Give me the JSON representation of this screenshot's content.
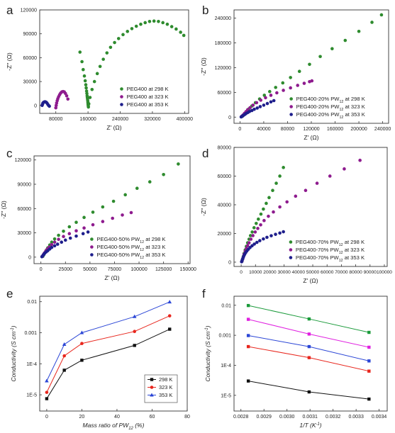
{
  "chart_data": [
    {
      "panel": "a",
      "type": "scatter",
      "xlabel": "Z' (Ω)",
      "ylabel": "-Z'' (Ω)",
      "xlim": [
        40000,
        410000
      ],
      "ylim": [
        -10000,
        120000
      ],
      "xticks": [
        80000,
        160000,
        240000,
        320000,
        400000
      ],
      "xtick_labels": [
        "80000",
        "160000",
        "240000",
        "320000",
        "400000"
      ],
      "yticks": [
        0,
        30000,
        60000,
        90000,
        120000
      ],
      "ytick_labels": [
        "0",
        "30000",
        "60000",
        "90000",
        "120000"
      ],
      "legend_position": "bottom-right",
      "series": [
        {
          "name": "PEG400 at 298 K",
          "color": "#2e8b2e",
          "x": [
            140000,
            145000,
            148000,
            151000,
            153000,
            154500,
            155500,
            156500,
            157200,
            157800,
            158300,
            158800,
            159300,
            159700,
            160000,
            160300,
            160600,
            161000,
            162000,
            165000,
            170000,
            176000,
            183000,
            190000,
            198000,
            207000,
            216000,
            226000,
            236000,
            247000,
            258000,
            269000,
            280000,
            291000,
            302000,
            313000,
            324000,
            335000,
            346000,
            357000,
            368000,
            379000,
            390000,
            398000
          ],
          "y": [
            67000,
            55000,
            45000,
            37000,
            31000,
            26000,
            22000,
            18000,
            15000,
            12000,
            10000,
            8000,
            6000,
            4000,
            2500,
            1000,
            -500,
            -2000,
            2000,
            10000,
            20000,
            30000,
            40000,
            49000,
            58000,
            66000,
            73000,
            79000,
            84000,
            89000,
            93000,
            96500,
            99500,
            102000,
            104000,
            105500,
            106000,
            105500,
            104000,
            102000,
            99000,
            96000,
            92000,
            88000
          ]
        },
        {
          "name": "PEG400 at 323 K",
          "color": "#8e1b8e",
          "x": [
            80000,
            81000,
            82000,
            83500,
            85000,
            87000,
            89500,
            92000,
            95000,
            98000,
            101000,
            104000,
            107000,
            110000
          ],
          "y": [
            -3000,
            0,
            3000,
            6000,
            8500,
            11000,
            13500,
            15500,
            17000,
            17500,
            17000,
            15000,
            12000,
            8000
          ]
        },
        {
          "name": "PEG400 at 353 K",
          "color": "#1e1e8c",
          "x": [
            46000,
            47000,
            48000,
            50000,
            52000,
            54000,
            56000,
            58000,
            60000,
            62000,
            64000
          ],
          "y": [
            0,
            1500,
            3000,
            4000,
            4500,
            4500,
            4000,
            3000,
            1500,
            0,
            -1000
          ]
        }
      ]
    },
    {
      "panel": "b",
      "type": "scatter",
      "xlabel": "Z' (Ω)",
      "ylabel": "-Z'' (Ω)",
      "xlim": [
        -10000,
        250000
      ],
      "ylim": [
        -15000,
        260000
      ],
      "xticks": [
        0,
        40000,
        80000,
        120000,
        160000,
        200000,
        240000
      ],
      "xtick_labels": [
        "0",
        "40000",
        "80000",
        "120000",
        "160000",
        "200000",
        "240000"
      ],
      "yticks": [
        0,
        60000,
        120000,
        180000,
        240000
      ],
      "ytick_labels": [
        "0",
        "60000",
        "120000",
        "180000",
        "240000"
      ],
      "legend_position": "bottom-right",
      "series": [
        {
          "name": "PEG400-20% PW12 at 298 K",
          "color": "#2e8b2e",
          "x": [
            4000,
            6000,
            8000,
            11000,
            15000,
            20000,
            26000,
            33000,
            41000,
            50000,
            60000,
            72000,
            85000,
            100000,
            117000,
            135000,
            155000,
            177000,
            200000,
            222000,
            238000
          ],
          "y": [
            2000,
            5000,
            9000,
            14000,
            20000,
            27000,
            35000,
            44000,
            53000,
            62000,
            72000,
            83000,
            96000,
            111000,
            128000,
            147000,
            166000,
            186000,
            208000,
            230000,
            248000
          ]
        },
        {
          "name": "PEG400-20% PW12 at 323 K",
          "color": "#8e1b8e",
          "x": [
            3000,
            5000,
            7500,
            10000,
            13000,
            17000,
            22000,
            28000,
            35000,
            43000,
            52000,
            62000,
            73000,
            85000,
            97000,
            108000,
            117000,
            121000
          ],
          "y": [
            2000,
            5000,
            9000,
            13000,
            18000,
            23000,
            29000,
            35000,
            41000,
            47000,
            53000,
            59000,
            65000,
            71000,
            77000,
            82000,
            86000,
            88000
          ]
        },
        {
          "name": "PEG400-20% PW12 at 353 K",
          "color": "#1e1e8c",
          "x": [
            2000,
            3000,
            4500,
            6000,
            8000,
            10000,
            13000,
            16000,
            20000,
            24000,
            29000,
            34000,
            40000,
            46000,
            52000,
            57000
          ],
          "y": [
            500,
            1500,
            3000,
            4500,
            6500,
            8500,
            11000,
            13500,
            16000,
            19000,
            22000,
            25500,
            29000,
            33000,
            37000,
            40000
          ]
        }
      ]
    },
    {
      "panel": "c",
      "type": "scatter",
      "xlabel": "Z' (Ω)",
      "ylabel": "-Z'' (Ω)",
      "xlim": [
        -7000,
        152000
      ],
      "ylim": [
        -8000,
        125000
      ],
      "xticks": [
        0,
        25000,
        50000,
        75000,
        100000,
        125000,
        150000
      ],
      "xtick_labels": [
        "0",
        "25000",
        "50000",
        "75000",
        "100000",
        "125000",
        "150000"
      ],
      "yticks": [
        0,
        30000,
        60000,
        90000,
        120000
      ],
      "ytick_labels": [
        "0",
        "30000",
        "60000",
        "90000",
        "120000"
      ],
      "legend_position": "bottom-right",
      "series": [
        {
          "name": "PEG400-50% PW12 at 298 K",
          "color": "#2e8b2e",
          "x": [
            2000,
            3000,
            4000,
            5500,
            7000,
            9000,
            11000,
            14000,
            18000,
            23000,
            29000,
            36000,
            44000,
            53000,
            63000,
            74000,
            86000,
            98000,
            111000,
            125000,
            140000
          ],
          "y": [
            1000,
            3000,
            5500,
            8500,
            11500,
            15000,
            18500,
            22500,
            27000,
            32000,
            37500,
            43000,
            49000,
            55500,
            62000,
            69000,
            77000,
            85000,
            93000,
            102000,
            115000
          ]
        },
        {
          "name": "PEG400-50% PW12 at 323 K",
          "color": "#8e1b8e",
          "x": [
            1500,
            2500,
            3500,
            5000,
            6500,
            8500,
            11000,
            14000,
            18000,
            23000,
            29000,
            36000,
            44000,
            53000,
            63000,
            73000,
            83000,
            92000
          ],
          "y": [
            1000,
            3000,
            5000,
            7500,
            10000,
            12500,
            15500,
            18500,
            22000,
            25500,
            29000,
            32500,
            36000,
            40000,
            44000,
            48000,
            52000,
            55000
          ]
        },
        {
          "name": "PEG400-50% PW12 at 353 K",
          "color": "#1e1e8c",
          "x": [
            1000,
            2000,
            3000,
            4000,
            5500,
            7000,
            9000,
            11000,
            14000,
            17000,
            21000,
            25000,
            30000,
            36000,
            43000,
            48000
          ],
          "y": [
            500,
            2000,
            3500,
            5000,
            6500,
            8000,
            10000,
            12000,
            14000,
            16000,
            18500,
            21000,
            23500,
            26000,
            29000,
            31000
          ]
        }
      ]
    },
    {
      "panel": "d",
      "type": "scatter",
      "xlabel": "Z' (Ω)",
      "ylabel": "-Z'' (Ω)",
      "xlim": [
        -5000,
        102000
      ],
      "ylim": [
        -3000,
        80000
      ],
      "xticks": [
        0,
        10000,
        20000,
        30000,
        40000,
        50000,
        60000,
        70000,
        80000,
        90000,
        100000
      ],
      "xtick_labels": [
        "0",
        "10000",
        "20000",
        "30000",
        "40000",
        "50000",
        "60000",
        "70000",
        "80000",
        "90000",
        "100000"
      ],
      "yticks": [
        0,
        20000,
        40000,
        60000,
        80000
      ],
      "ytick_labels": [
        "0",
        "20000",
        "40000",
        "60000",
        "80000"
      ],
      "legend_position": "bottom-right",
      "series": [
        {
          "name": "PEG400-70% PW12 at 298 K",
          "color": "#2e8b2e",
          "x": [
            500,
            1000,
            1500,
            2000,
            2800,
            3600,
            4500,
            5500,
            6500,
            7700,
            9000,
            10500,
            12000,
            13800,
            15500,
            17500,
            19500,
            22000,
            24500,
            27000,
            29500
          ],
          "y": [
            500,
            2000,
            4000,
            6000,
            8500,
            11000,
            13500,
            16000,
            18500,
            21000,
            24000,
            27000,
            30000,
            33500,
            37000,
            41000,
            45000,
            50000,
            55000,
            60000,
            66000
          ]
        },
        {
          "name": "PEG400-70% PW12 at 323 K",
          "color": "#8e1b8e",
          "x": [
            500,
            1000,
            1500,
            2000,
            2800,
            3600,
            4500,
            5500,
            6800,
            8200,
            9800,
            11600,
            13600,
            16000,
            19000,
            22500,
            27000,
            32000,
            38000,
            45000,
            53000,
            62000,
            72000,
            83000
          ],
          "y": [
            500,
            2000,
            3500,
            5500,
            7500,
            9500,
            11500,
            13500,
            16000,
            18500,
            21000,
            23500,
            26000,
            29000,
            32000,
            35000,
            38500,
            42000,
            46000,
            50000,
            55000,
            60000,
            65000,
            71000
          ]
        },
        {
          "name": "PEG400-70% PW12 at 353 K",
          "color": "#1e1e8c",
          "x": [
            300,
            600,
            900,
            1300,
            1800,
            2400,
            3100,
            4000,
            5000,
            6200,
            7600,
            9200,
            11000,
            13000,
            15500,
            18000,
            21000,
            24000,
            27000,
            29500
          ],
          "y": [
            300,
            1000,
            2000,
            3000,
            4200,
            5400,
            6600,
            7800,
            9000,
            10200,
            11400,
            12600,
            13800,
            15000,
            16200,
            17300,
            18400,
            19400,
            20300,
            21200
          ]
        }
      ]
    },
    {
      "panel": "e",
      "type": "line",
      "xlabel": "Mass ratio of PW12 (%)",
      "ylabel": "Conductivity (S cm-1)",
      "xlim": [
        -4,
        80
      ],
      "ylim": [
        3e-06,
        0.015
      ],
      "yscale": "log",
      "xticks": [
        0,
        20,
        40,
        60,
        80
      ],
      "xtick_labels": [
        "0",
        "20",
        "40",
        "60",
        "80"
      ],
      "yticks": [
        1e-05,
        0.0001,
        0.001,
        0.01
      ],
      "ytick_labels": [
        "1E-5",
        "1E-4",
        "0.001",
        "0.01"
      ],
      "legend_position": "bottom-right",
      "x": [
        0,
        10,
        20,
        50,
        70
      ],
      "series": [
        {
          "name": "298 K",
          "color": "#111111",
          "marker": "square",
          "values": [
            7.5e-06,
            6.2e-05,
            0.00013,
            0.00039,
            0.0013
          ]
        },
        {
          "name": "323 K",
          "color": "#e8261d",
          "marker": "circle",
          "values": [
            1.2e-05,
            0.00018,
            0.00045,
            0.0011,
            0.0035
          ]
        },
        {
          "name": "353 K",
          "color": "#2b46d6",
          "marker": "triangle",
          "values": [
            2.8e-05,
            0.00042,
            0.001,
            0.0033,
            0.0098
          ]
        }
      ]
    },
    {
      "panel": "f",
      "type": "line",
      "xlabel": "1/T (K-1)",
      "ylabel": "Conductivity (S cm-1)",
      "xlim": [
        0.00277,
        0.003435
      ],
      "ylim": [
        3e-06,
        0.02
      ],
      "yscale": "log",
      "xticks": [
        0.0028,
        0.0029,
        0.003,
        0.0031,
        0.0032,
        0.0033,
        0.0034
      ],
      "xtick_labels": [
        "0.0028",
        "0.0029",
        "0.0030",
        "0.0031",
        "0.0032",
        "0.0033",
        "0.0034"
      ],
      "yticks": [
        1e-05,
        0.0001,
        0.001,
        0.01
      ],
      "ytick_labels": [
        "1E-5",
        "1E-4",
        "0.001",
        "0.01"
      ],
      "x": [
        0.002832,
        0.003096,
        0.003356
      ],
      "series": [
        {
          "color": "#1a9a3a",
          "marker": "square",
          "values": [
            0.0098,
            0.0035,
            0.00125
          ]
        },
        {
          "color": "#e020e0",
          "marker": "square",
          "values": [
            0.0034,
            0.0011,
            0.0004
          ]
        },
        {
          "color": "#2b46d6",
          "marker": "square",
          "values": [
            0.00098,
            0.00042,
            0.00014
          ]
        },
        {
          "color": "#e8261d",
          "marker": "square",
          "values": [
            0.00042,
            0.00018,
            6.4e-05
          ]
        },
        {
          "color": "#111111",
          "marker": "square",
          "values": [
            3e-05,
            1.3e-05,
            7.5e-06
          ]
        }
      ]
    }
  ],
  "panel_letters": [
    "a",
    "b",
    "c",
    "d",
    "e",
    "f"
  ]
}
